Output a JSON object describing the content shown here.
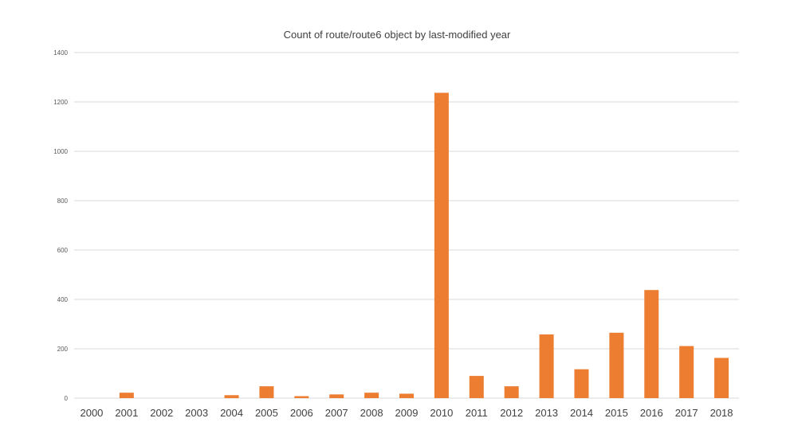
{
  "chart_data": {
    "type": "bar",
    "title": "Count of route/route6 object by last-modified year",
    "xlabel": "",
    "ylabel": "",
    "categories": [
      "2000",
      "2001",
      "2002",
      "2003",
      "2004",
      "2005",
      "2006",
      "2007",
      "2008",
      "2009",
      "2010",
      "2011",
      "2012",
      "2013",
      "2014",
      "2015",
      "2016",
      "2017",
      "2018"
    ],
    "series": [
      {
        "values": [
          0,
          22,
          0,
          0,
          12,
          48,
          8,
          15,
          22,
          18,
          1237,
          90,
          48,
          258,
          117,
          265,
          438,
          211,
          163
        ]
      }
    ],
    "ylim": [
      0,
      1400
    ],
    "yticks": [
      "0",
      "200",
      "400",
      "600",
      "800",
      "1000",
      "1200",
      "1400"
    ],
    "grid": true,
    "legend": "none",
    "bar_color": "#ED7D31",
    "grid_color": "#D9D9D9"
  }
}
